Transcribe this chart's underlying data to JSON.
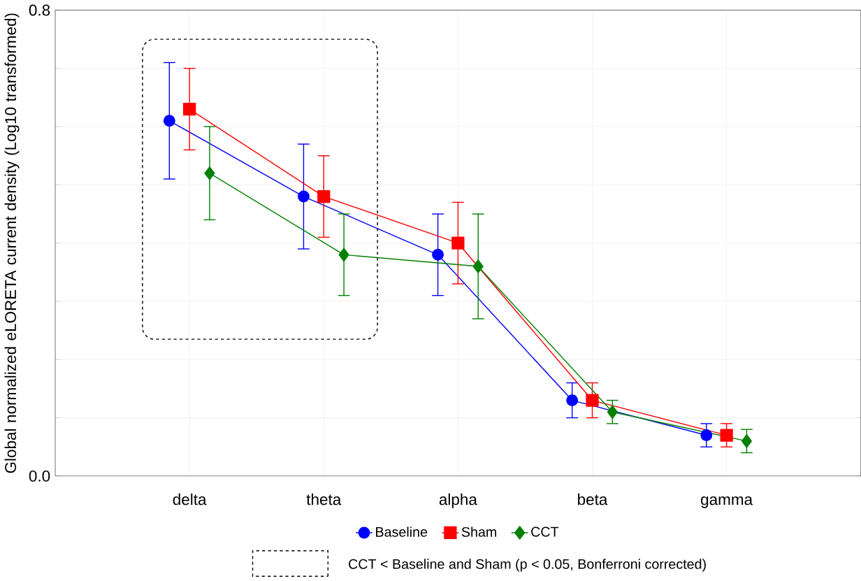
{
  "chart_data": {
    "type": "line",
    "ylabel": "Global normalized eLORETA current density (Log10 transformed)",
    "categories": [
      "delta",
      "theta",
      "alpha",
      "beta",
      "gamma"
    ],
    "series": [
      {
        "name": "Baseline",
        "color": "#0000ff",
        "marker": "circle",
        "values": [
          0.61,
          0.48,
          0.38,
          0.13,
          0.07
        ],
        "errors": [
          0.1,
          0.09,
          0.07,
          0.03,
          0.02
        ]
      },
      {
        "name": "Sham",
        "color": "#ff0000",
        "marker": "square",
        "values": [
          0.63,
          0.48,
          0.4,
          0.13,
          0.07
        ],
        "errors": [
          0.07,
          0.07,
          0.07,
          0.03,
          0.02
        ]
      },
      {
        "name": "CCT",
        "color": "#008000",
        "marker": "diamond",
        "values": [
          0.52,
          0.38,
          0.36,
          0.11,
          0.06
        ],
        "errors": [
          0.08,
          0.07,
          0.09,
          0.02,
          0.02
        ]
      }
    ],
    "ylim": [
      0,
      0.8
    ],
    "yticks": [
      {
        "value": 0,
        "label": "0.0"
      },
      {
        "value": 0.1,
        "label": null
      },
      {
        "value": 0.2,
        "label": null
      },
      {
        "value": 0.3,
        "label": null
      },
      {
        "value": 0.4,
        "label": null
      },
      {
        "value": 0.5,
        "label": null
      },
      {
        "value": 0.6,
        "label": null
      },
      {
        "value": 0.7,
        "label": null
      },
      {
        "value": 0.8,
        "label": "0.8"
      }
    ],
    "annotations": [
      "CCT < Baseline and Sham (p < 0.05, Bonferroni corrected)"
    ],
    "grid": true,
    "legend": "bottom",
    "line_style": "solid"
  }
}
